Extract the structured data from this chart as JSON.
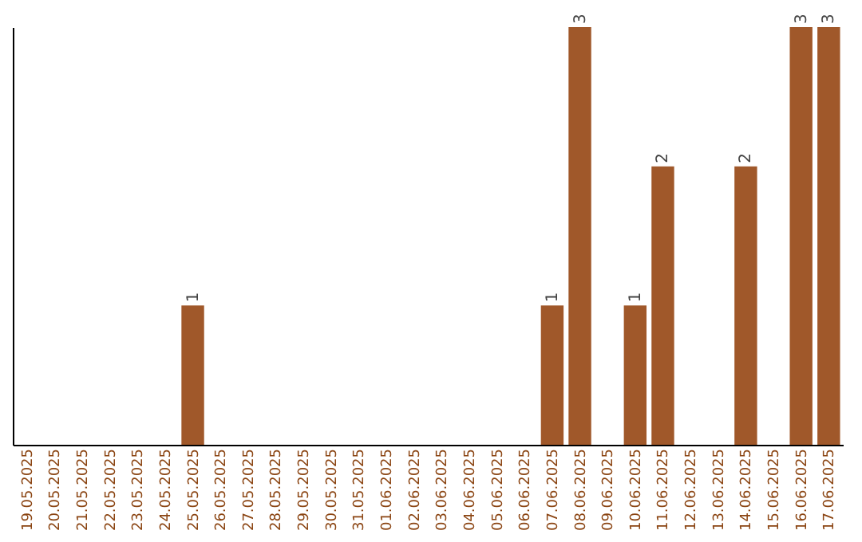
{
  "chart_data": {
    "type": "bar",
    "categories": [
      "19.05.2025",
      "20.05.2025",
      "21.05.2025",
      "22.05.2025",
      "23.05.2025",
      "24.05.2025",
      "25.05.2025",
      "26.05.2025",
      "27.05.2025",
      "28.05.2025",
      "29.05.2025",
      "30.05.2025",
      "31.05.2025",
      "01.06.2025",
      "02.06.2025",
      "03.06.2025",
      "04.06.2025",
      "05.06.2025",
      "06.06.2025",
      "07.06.2025",
      "08.06.2025",
      "09.06.2025",
      "10.06.2025",
      "11.06.2025",
      "12.06.2025",
      "13.06.2025",
      "14.06.2025",
      "15.06.2025",
      "16.06.2025",
      "17.06.2025"
    ],
    "values": [
      0,
      0,
      0,
      0,
      0,
      0,
      1,
      0,
      0,
      0,
      0,
      0,
      0,
      0,
      0,
      0,
      0,
      0,
      0,
      1,
      3,
      0,
      1,
      2,
      0,
      0,
      2,
      0,
      3,
      3
    ],
    "value_labels": [
      null,
      null,
      null,
      null,
      null,
      null,
      "1",
      null,
      null,
      null,
      null,
      null,
      null,
      null,
      null,
      null,
      null,
      null,
      null,
      "1",
      "3",
      null,
      "1",
      "2",
      null,
      null,
      "2",
      null,
      "3",
      "3"
    ],
    "color": "#a0582a",
    "ylim": [
      0,
      3
    ],
    "tick_labels": "x",
    "grid": false
  }
}
